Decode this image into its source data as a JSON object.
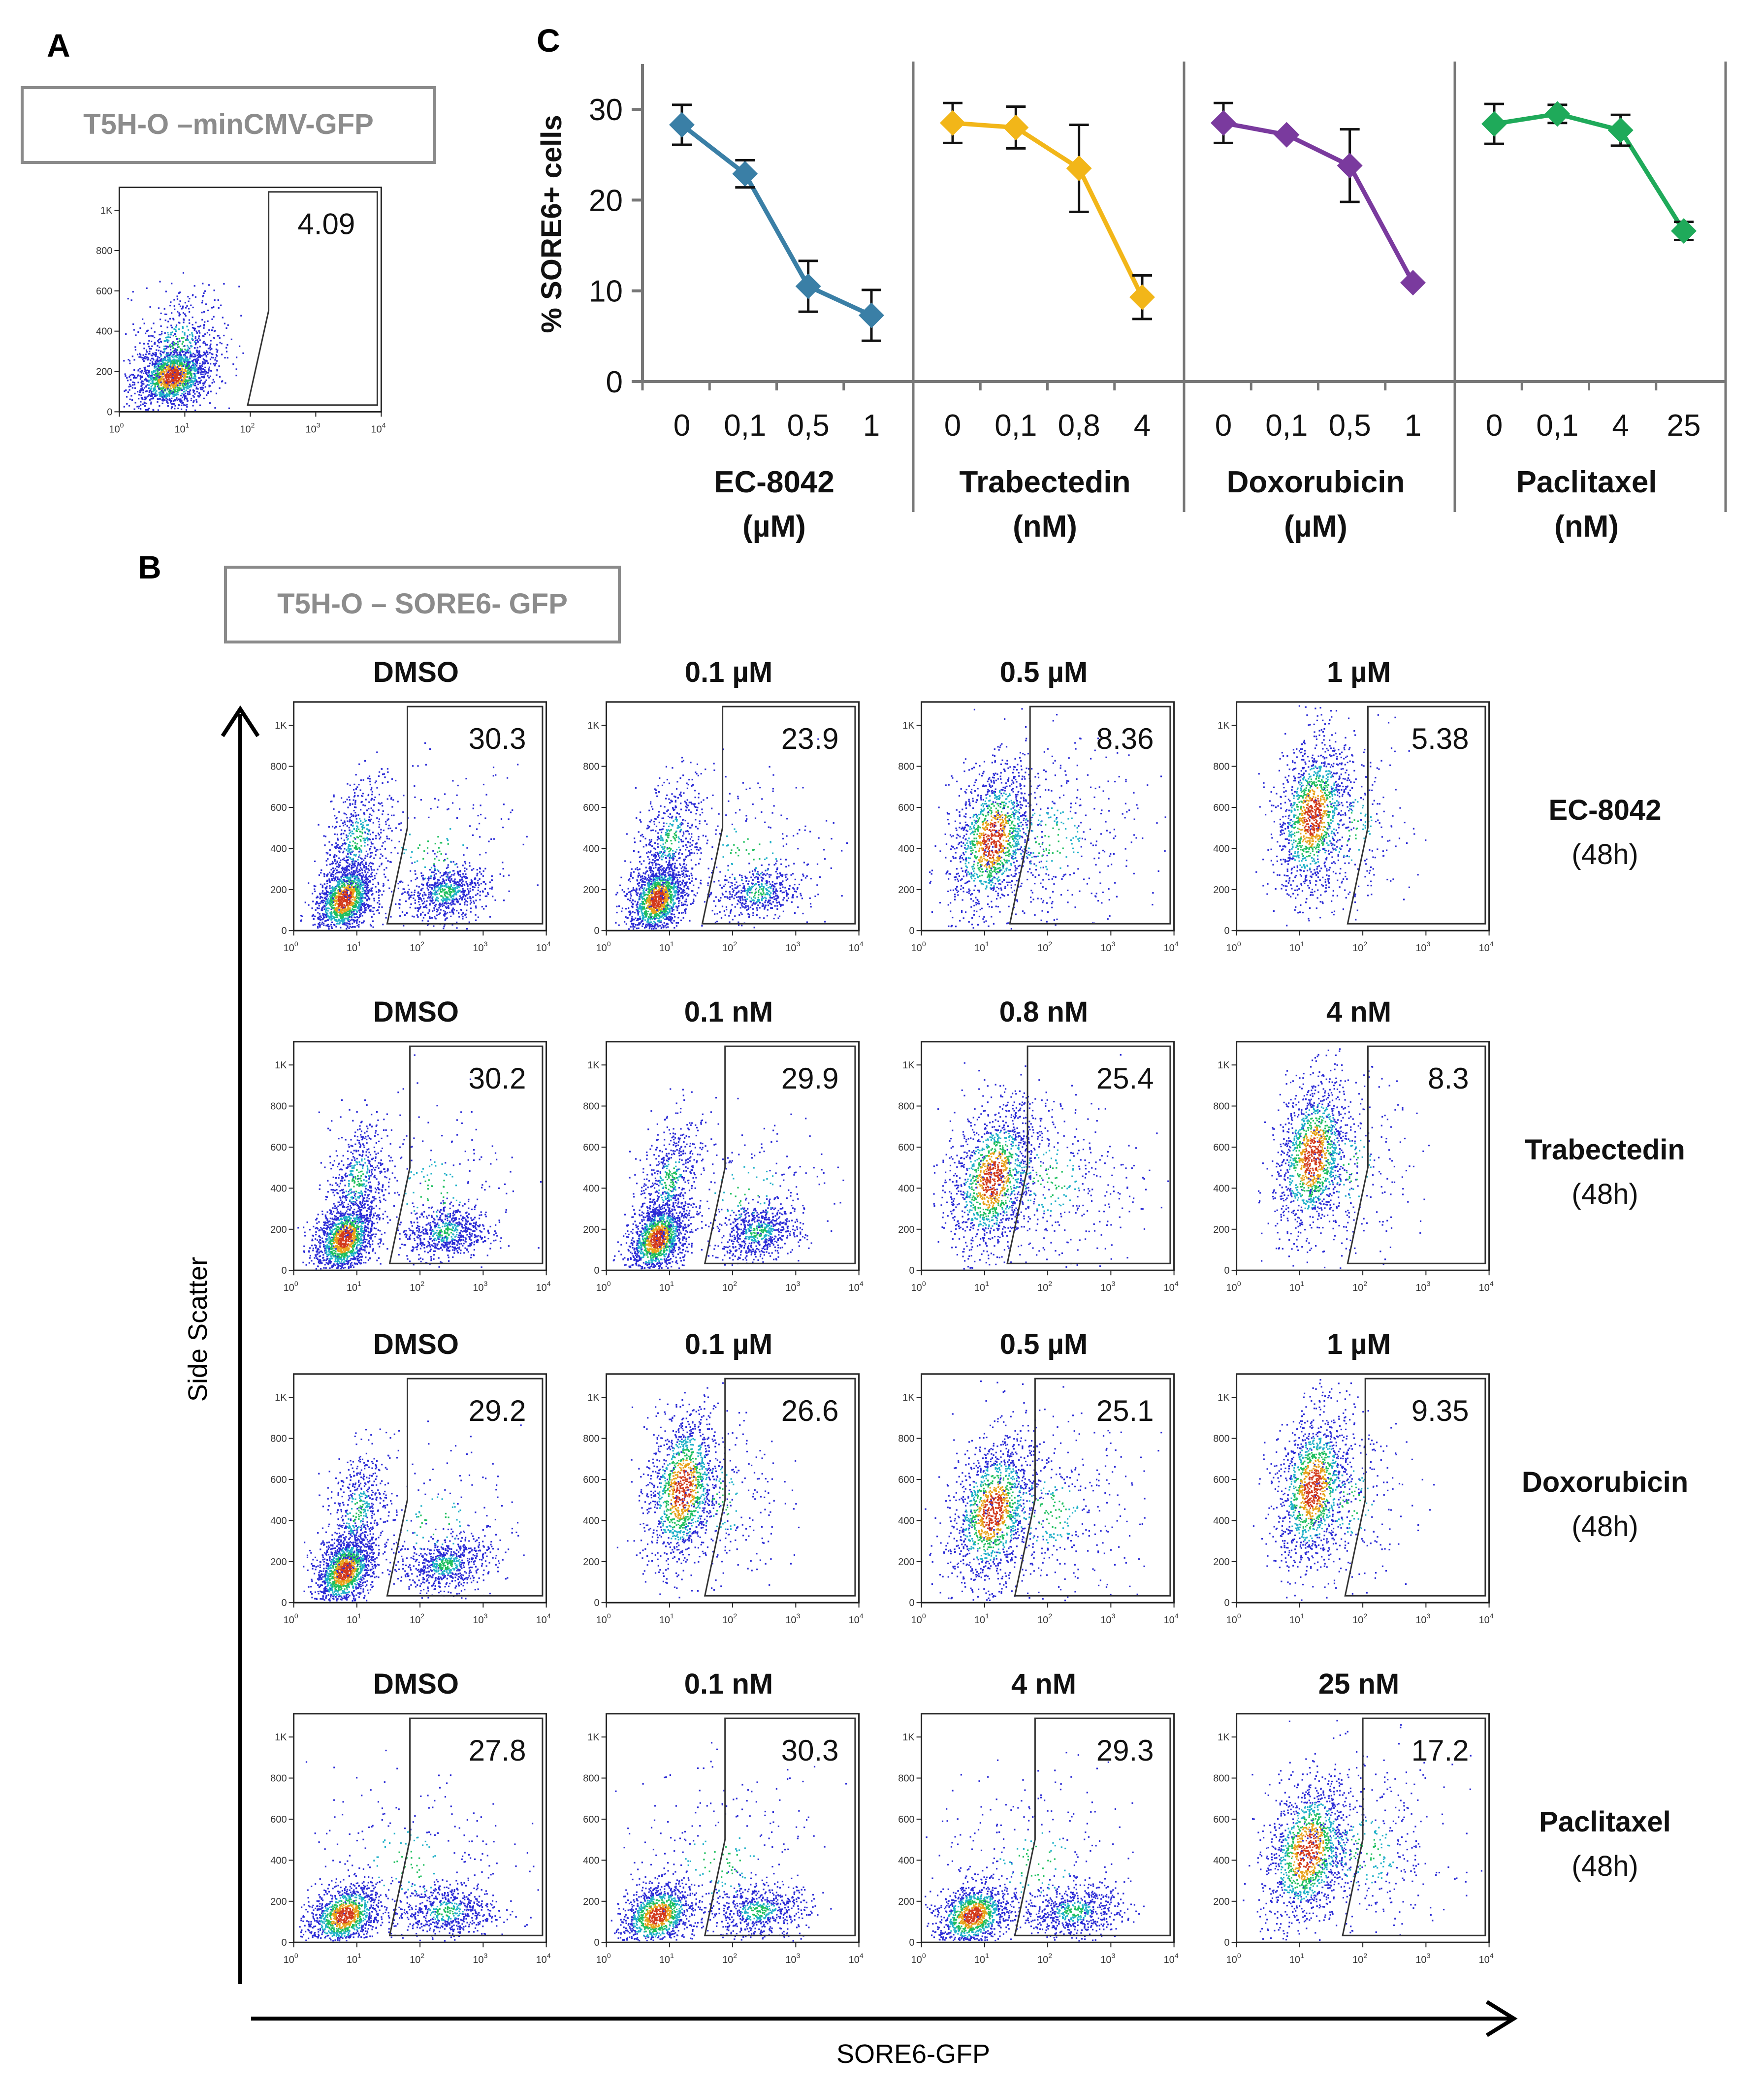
{
  "panels": {
    "a": "A",
    "b": "B",
    "c": "C"
  },
  "boxes": {
    "a_title": "T5H-O –minCMV-GFP",
    "b_title": "T5H-O – SORE6- GFP"
  },
  "axes": {
    "x_label": "SORE6-GFP",
    "y_label": "Side Scatter"
  },
  "flow_ticks": {
    "y": [
      "0",
      "200",
      "400",
      "600",
      "800",
      "1K"
    ],
    "x_exp": [
      "0",
      "1",
      "2",
      "3",
      "4"
    ],
    "x_base": "10"
  },
  "panel_a": {
    "value": "4.09"
  },
  "grid": {
    "rows": [
      {
        "drug": "EC-8042",
        "time": "(48h)",
        "columns": [
          {
            "header": "DMSO",
            "value": "30.3"
          },
          {
            "header": "0.1 µM",
            "value": "23.9"
          },
          {
            "header": "0.5 µM",
            "value": "8.36"
          },
          {
            "header": "1 µM",
            "value": "5.38"
          }
        ]
      },
      {
        "drug": "Trabectedin",
        "time": "(48h)",
        "columns": [
          {
            "header": "DMSO",
            "value": "30.2"
          },
          {
            "header": "0.1 nM",
            "value": "29.9"
          },
          {
            "header": "0.8 nM",
            "value": "25.4"
          },
          {
            "header": "4 nM",
            "value": "8.3"
          }
        ]
      },
      {
        "drug": "Doxorubicin",
        "time": "(48h)",
        "columns": [
          {
            "header": "DMSO",
            "value": "29.2"
          },
          {
            "header": "0.1 µM",
            "value": "26.6"
          },
          {
            "header": "0.5 µM",
            "value": "25.1"
          },
          {
            "header": "1 µM",
            "value": "9.35"
          }
        ]
      },
      {
        "drug": "Paclitaxel",
        "time": "(48h)",
        "columns": [
          {
            "header": "DMSO",
            "value": "27.8"
          },
          {
            "header": "0.1 nM",
            "value": "30.3"
          },
          {
            "header": "4 nM",
            "value": "29.3"
          },
          {
            "header": "25 nM",
            "value": "17.2"
          }
        ]
      }
    ]
  },
  "chart_data": {
    "type": "line",
    "ylabel": "% SORE6+ cells",
    "ylim": [
      0,
      35
    ],
    "yticks": [
      "0",
      "10",
      "20",
      "30"
    ],
    "series": [
      {
        "name": "EC-8042",
        "unit": "(µM)",
        "color": "#3A7FA6",
        "categories": [
          "0",
          "0,1",
          "0,5",
          "1"
        ],
        "values": [
          28.3,
          22.9,
          10.5,
          7.3
        ],
        "errors": [
          2.2,
          1.5,
          2.8,
          2.8
        ]
      },
      {
        "name": "Trabectedin",
        "unit": "(nM)",
        "color": "#F2B619",
        "categories": [
          "0",
          "0,1",
          "0,8",
          "4"
        ],
        "values": [
          28.5,
          28.0,
          23.5,
          9.3
        ],
        "errors": [
          2.2,
          2.3,
          4.8,
          2.4
        ]
      },
      {
        "name": "Doxorubicin",
        "unit": "(µM)",
        "color": "#7A3A9E",
        "categories": [
          "0",
          "0,1",
          "0,5",
          "1"
        ],
        "values": [
          28.5,
          27.2,
          23.8,
          10.9
        ],
        "errors": [
          2.2,
          0,
          4.0,
          0
        ]
      },
      {
        "name": "Paclitaxel",
        "unit": "(nM)",
        "color": "#1FAA5A",
        "categories": [
          "0",
          "0,1",
          "4",
          "25"
        ],
        "values": [
          28.4,
          29.5,
          27.7,
          16.6
        ],
        "errors": [
          2.2,
          1.0,
          1.7,
          1.0
        ]
      }
    ]
  }
}
